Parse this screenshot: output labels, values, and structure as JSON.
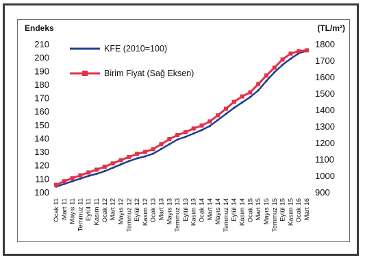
{
  "chart_data": {
    "type": "line",
    "left_axis_label": "Endeks",
    "right_axis_label": "(TL/m²)",
    "left_ylim": [
      100,
      210
    ],
    "right_ylim": [
      900,
      1800
    ],
    "left_ticks": [
      100,
      110,
      120,
      130,
      140,
      150,
      160,
      170,
      180,
      190,
      200,
      210
    ],
    "right_ticks": [
      900,
      1000,
      1100,
      1200,
      1300,
      1400,
      1500,
      1600,
      1700,
      1800
    ],
    "x_tick_labels": [
      "Ocak 11",
      "Mart 11",
      "Mayıs 11",
      "Temmuz 11",
      "Eylül 11",
      "Kasım 11",
      "Ocak 12",
      "Mart 12",
      "Mayıs 12",
      "Temmuz 12",
      "Eylül 12",
      "Kasım 12",
      "Ocak 13",
      "Mart 13",
      "Mayıs 13",
      "Temmuz 13",
      "Eylül 13",
      "Kasım 13",
      "Ocak 14",
      "Mart 14",
      "Mayıs 14",
      "Temmuz 14",
      "Eylül 14",
      "Kasım 14",
      "Ocak 15",
      "Mart 15",
      "Mayıs 15",
      "Temmuz 15",
      "Eylül 15",
      "Kasım 15",
      "Ocak 16",
      "Mart 16"
    ],
    "grid": false,
    "legend_position": "top-left",
    "series": [
      {
        "name": "KFE (2010=100)",
        "axis": "left",
        "color": "#1f3f8f",
        "marker": "line",
        "values": [
          104.5,
          106.5,
          108.5,
          110.5,
          112.5,
          114,
          116,
          118.5,
          121,
          123.5,
          125.5,
          127,
          129,
          132.5,
          136,
          139.5,
          141.5,
          144,
          146.5,
          149.5,
          154,
          158.5,
          163,
          167,
          171,
          176,
          183,
          189.5,
          195,
          199.5,
          203.5,
          205.5
        ]
      },
      {
        "name": "Birim Fiyat (Sağ Eksen)",
        "axis": "right",
        "color": "#e0334a",
        "marker": "square",
        "values": [
          948,
          970,
          988,
          1006,
          1023,
          1040,
          1058,
          1078,
          1098,
          1117,
          1136,
          1148,
          1165,
          1195,
          1225,
          1250,
          1268,
          1290,
          1308,
          1333,
          1370,
          1410,
          1452,
          1485,
          1510,
          1560,
          1612,
          1660,
          1710,
          1745,
          1760,
          1765
        ]
      }
    ]
  }
}
